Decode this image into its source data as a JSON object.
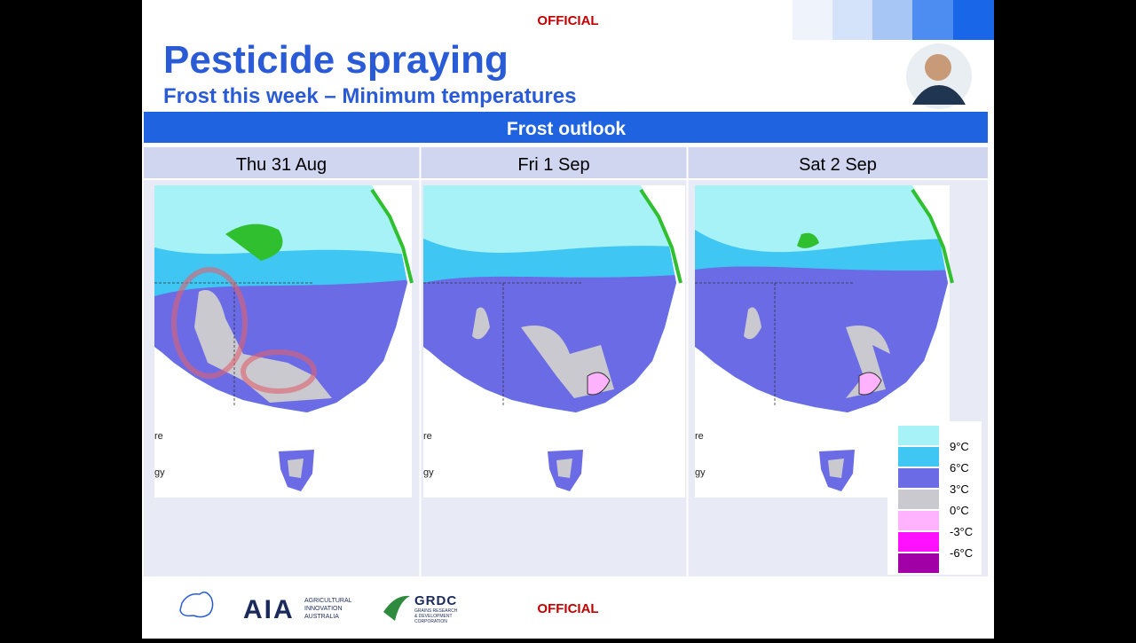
{
  "header": {
    "classification": "OFFICIAL",
    "title": "Pesticide spraying",
    "subtitle": "Frost this week – Minimum temperatures"
  },
  "table": {
    "title": "Frost outlook",
    "columns": [
      "Thu 31 Aug",
      "Fri 1 Sep",
      "Sat 2 Sep"
    ]
  },
  "map_fragments": [
    "re",
    "gy"
  ],
  "legend": {
    "labels": [
      "9°C",
      "6°C",
      "3°C",
      "0°C",
      "-3°C",
      "-6°C"
    ],
    "colors": [
      "#a6f2f7",
      "#3fc6f2",
      "#6b6be6",
      "#c9c9cf",
      "#ffb3ff",
      "#ff10ff",
      "#a000a6"
    ]
  },
  "footer": {
    "aia_name": [
      "AGRICULTURAL",
      "INNOVATION",
      "AUSTRALIA"
    ],
    "aia_logo": "AIA",
    "grdc_logo": "GRDC",
    "grdc_name": [
      "GRAINS RESEARCH",
      "& DEVELOPMENT",
      "CORPORATION"
    ],
    "classification": "OFFICIAL"
  }
}
